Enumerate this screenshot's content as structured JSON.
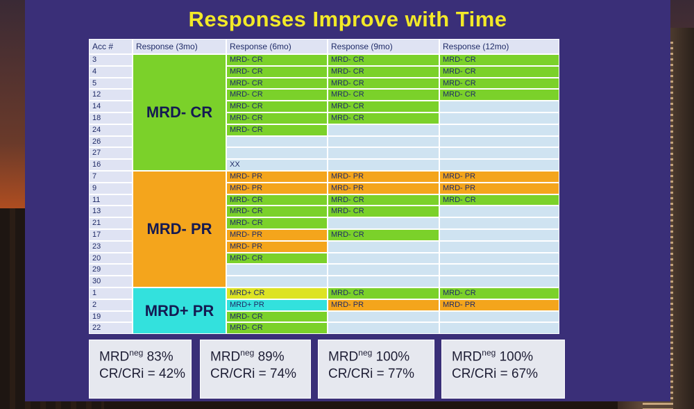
{
  "slide": {
    "title": "Responses Improve with Time",
    "headers": [
      "Acc #",
      "Response (3mo)",
      "Response (6mo)",
      "Response (9mo)",
      "Response (12mo)"
    ],
    "groups": [
      {
        "label": "MRD- CR",
        "color": "#7bd12a",
        "rows": [
          {
            "acc": "3",
            "m6": "MRD- CR",
            "m9": "MRD- CR",
            "m12": "MRD- CR"
          },
          {
            "acc": "4",
            "m6": "MRD- CR",
            "m9": "MRD- CR",
            "m12": "MRD- CR"
          },
          {
            "acc": "5",
            "m6": "MRD- CR",
            "m9": "MRD- CR",
            "m12": "MRD- CR"
          },
          {
            "acc": "12",
            "m6": "MRD- CR",
            "m9": "MRD- CR",
            "m12": "MRD- CR"
          },
          {
            "acc": "14",
            "m6": "MRD- CR",
            "m9": "MRD- CR",
            "m12": ""
          },
          {
            "acc": "18",
            "m6": "MRD- CR",
            "m9": "MRD- CR",
            "m12": ""
          },
          {
            "acc": "24",
            "m6": "MRD- CR",
            "m9": "",
            "m12": ""
          },
          {
            "acc": "26",
            "m6": "",
            "m9": "",
            "m12": ""
          },
          {
            "acc": "27",
            "m6": "",
            "m9": "",
            "m12": ""
          },
          {
            "acc": "16",
            "m6": "XX",
            "m9": "",
            "m12": ""
          }
        ]
      },
      {
        "label": "MRD- PR",
        "color": "#f4a51c",
        "rows": [
          {
            "acc": "7",
            "m6": "MRD- PR",
            "m9": "MRD- PR",
            "m12": "MRD- PR"
          },
          {
            "acc": "9",
            "m6": "MRD- PR",
            "m9": "MRD- PR",
            "m12": "MRD- PR"
          },
          {
            "acc": "11",
            "m6": "MRD- CR",
            "m9": "MRD- CR",
            "m12": "MRD- CR"
          },
          {
            "acc": "13",
            "m6": "MRD- CR",
            "m9": "MRD- CR",
            "m12": ""
          },
          {
            "acc": "21",
            "m6": "MRD- CR",
            "m9": "",
            "m12": ""
          },
          {
            "acc": "17",
            "m6": "MRD- PR",
            "m9": "MRD- CR",
            "m12": ""
          },
          {
            "acc": "23",
            "m6": "MRD- PR",
            "m9": "",
            "m12": ""
          },
          {
            "acc": "20",
            "m6": "MRD- CR",
            "m9": "",
            "m12": ""
          },
          {
            "acc": "29",
            "m6": "",
            "m9": "",
            "m12": ""
          },
          {
            "acc": "30",
            "m6": "",
            "m9": "",
            "m12": ""
          }
        ]
      },
      {
        "label": "MRD+ PR",
        "color": "#33e1dd",
        "rows": [
          {
            "acc": "1",
            "m6": "MRD+ CR",
            "m9": "MRD- CR",
            "m12": "MRD- CR"
          },
          {
            "acc": "2",
            "m6": "MRD+ PR",
            "m9": "MRD- PR",
            "m12": "MRD- PR"
          },
          {
            "acc": "19",
            "m6": "MRD- CR",
            "m9": "",
            "m12": ""
          },
          {
            "acc": "22",
            "m6": "MRD- CR",
            "m9": "",
            "m12": ""
          }
        ]
      }
    ],
    "summary": [
      {
        "mrd_label": "MRD",
        "mrd_sup": "neg",
        "mrd_value": "83%",
        "cr": "CR/CRi = 42%"
      },
      {
        "mrd_label": "MRD",
        "mrd_sup": "neg",
        "mrd_value": "89%",
        "cr": "CR/CRi = 74%"
      },
      {
        "mrd_label": "MRD",
        "mrd_sup": "neg",
        "mrd_value": "100%",
        "cr": "CR/CRi = 77%"
      },
      {
        "mrd_label": "MRD",
        "mrd_sup": "neg",
        "mrd_value": "100%",
        "cr": "CR/CRi = 67%"
      }
    ],
    "colors": {
      "cr": "#7bd12a",
      "pr": "#f4a51c",
      "mrd_pos_cr": "#dde323",
      "mrd_pos_pr": "#33e1dd",
      "empty": "#cfe3f1"
    }
  }
}
